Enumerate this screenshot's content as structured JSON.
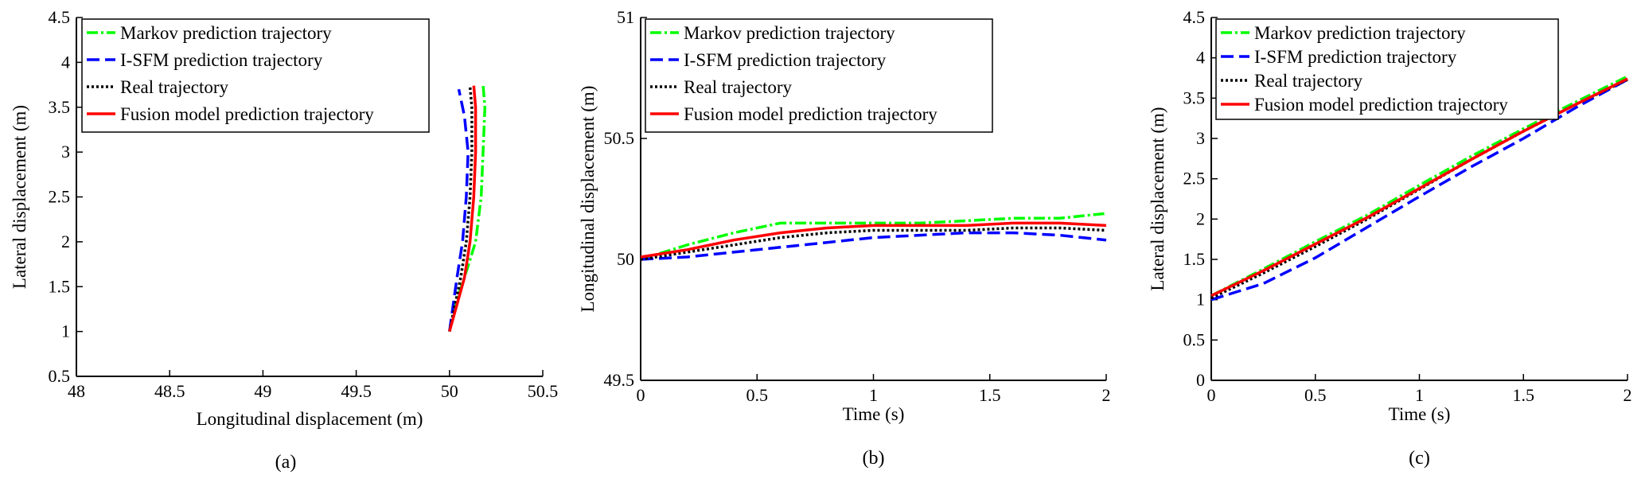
{
  "styles": {
    "markov": {
      "color": "#00ff00",
      "dash": "14 4 3 4",
      "width": 3.5
    },
    "isfm": {
      "color": "#0000ff",
      "dash": "16 7",
      "width": 3.5
    },
    "real": {
      "color": "#000000",
      "dash": "3 3",
      "width": 3.5
    },
    "fusion": {
      "color": "#ff0000",
      "dash": "",
      "width": 3.5
    }
  },
  "chart_data": [
    {
      "type": "line",
      "caption": "(a)",
      "xlabel": "Longitudinal displacement (m)",
      "ylabel": "Lateral displacement (m)",
      "xlim": [
        48,
        50.5
      ],
      "ylim": [
        0.5,
        4.5
      ],
      "xticks": [
        "48",
        "48.5",
        "49",
        "49.5",
        "50",
        "50.5"
      ],
      "xtick_values": [
        48,
        48.5,
        49,
        49.5,
        50,
        50.5
      ],
      "yticks": [
        "0.5",
        "1",
        "1.5",
        "2",
        "2.5",
        "3",
        "3.5",
        "4",
        "4.5"
      ],
      "ytick_values": [
        0.5,
        1,
        1.5,
        2,
        2.5,
        3,
        3.5,
        4,
        4.5
      ],
      "legend": {
        "position": "top-left",
        "entries": [
          {
            "key": "markov",
            "label": "Markov prediction trajectory"
          },
          {
            "key": "isfm",
            "label": "I-SFM prediction trajectory"
          },
          {
            "key": "real",
            "label": "Real trajectory"
          },
          {
            "key": "fusion",
            "label": "Fusion model prediction trajectory"
          }
        ]
      },
      "series": [
        {
          "key": "markov",
          "x": [
            50.0,
            50.03,
            50.08,
            50.14,
            50.17,
            50.18,
            50.19,
            50.18
          ],
          "y": [
            1.0,
            1.3,
            1.6,
            2.0,
            2.5,
            3.0,
            3.5,
            3.75
          ]
        },
        {
          "key": "isfm",
          "x": [
            50.0,
            50.02,
            50.04,
            50.07,
            50.09,
            50.1,
            50.08,
            50.05
          ],
          "y": [
            1.0,
            1.3,
            1.6,
            2.0,
            2.5,
            3.0,
            3.4,
            3.7
          ]
        },
        {
          "key": "real",
          "x": [
            50.0,
            50.03,
            50.06,
            50.09,
            50.11,
            50.12,
            50.12,
            50.11
          ],
          "y": [
            1.0,
            1.3,
            1.6,
            2.0,
            2.5,
            3.0,
            3.5,
            3.73
          ]
        },
        {
          "key": "fusion",
          "x": [
            50.0,
            50.04,
            50.08,
            50.11,
            50.13,
            50.14,
            50.14,
            50.13
          ],
          "y": [
            1.0,
            1.3,
            1.6,
            2.0,
            2.5,
            3.0,
            3.5,
            3.74
          ]
        }
      ]
    },
    {
      "type": "line",
      "caption": "(b)",
      "xlabel": "Time (s)",
      "ylabel": "Longitudinal displacement (m)",
      "xlim": [
        0,
        2
      ],
      "ylim": [
        49.5,
        51
      ],
      "xticks": [
        "0",
        "0.5",
        "1",
        "1.5",
        "2"
      ],
      "xtick_values": [
        0,
        0.5,
        1,
        1.5,
        2
      ],
      "yticks": [
        "49.5",
        "50",
        "50.5",
        "51"
      ],
      "ytick_values": [
        49.5,
        50,
        50.5,
        51
      ],
      "legend": {
        "position": "top-left",
        "entries": [
          {
            "key": "markov",
            "label": "Markov prediction trajectory"
          },
          {
            "key": "isfm",
            "label": "I-SFM prediction trajectory"
          },
          {
            "key": "real",
            "label": "Real trajectory"
          },
          {
            "key": "fusion",
            "label": "Fusion model prediction trajectory"
          }
        ]
      },
      "series": [
        {
          "key": "markov",
          "x": [
            0,
            0.2,
            0.4,
            0.6,
            0.8,
            1.0,
            1.2,
            1.4,
            1.6,
            1.8,
            2.0
          ],
          "y": [
            50.0,
            50.06,
            50.11,
            50.15,
            50.15,
            50.15,
            50.15,
            50.16,
            50.17,
            50.17,
            50.19
          ]
        },
        {
          "key": "isfm",
          "x": [
            0,
            0.2,
            0.4,
            0.6,
            0.8,
            1.0,
            1.2,
            1.4,
            1.6,
            1.8,
            2.0
          ],
          "y": [
            50.0,
            50.01,
            50.03,
            50.05,
            50.07,
            50.09,
            50.1,
            50.11,
            50.11,
            50.1,
            50.08
          ]
        },
        {
          "key": "real",
          "x": [
            0,
            0.2,
            0.4,
            0.6,
            0.8,
            1.0,
            1.2,
            1.4,
            1.6,
            1.8,
            2.0
          ],
          "y": [
            50.0,
            50.03,
            50.06,
            50.09,
            50.11,
            50.12,
            50.12,
            50.12,
            50.13,
            50.13,
            50.12
          ]
        },
        {
          "key": "fusion",
          "x": [
            0,
            0.2,
            0.4,
            0.6,
            0.8,
            1.0,
            1.2,
            1.4,
            1.6,
            1.8,
            2.0
          ],
          "y": [
            50.01,
            50.04,
            50.08,
            50.11,
            50.13,
            50.14,
            50.14,
            50.14,
            50.15,
            50.15,
            50.14
          ]
        }
      ]
    },
    {
      "type": "line",
      "caption": "(c)",
      "xlabel": "Time (s)",
      "ylabel": "Lateral displacement (m)",
      "xlim": [
        0,
        2
      ],
      "ylim": [
        0,
        4.5
      ],
      "xticks": [
        "0",
        "0.5",
        "1",
        "1.5",
        "2"
      ],
      "xtick_values": [
        0,
        0.5,
        1,
        1.5,
        2
      ],
      "yticks": [
        "0",
        "0.5",
        "1",
        "1.5",
        "2",
        "2.5",
        "3",
        "3.5",
        "4",
        "4.5"
      ],
      "ytick_values": [
        0,
        0.5,
        1,
        1.5,
        2,
        2.5,
        3,
        3.5,
        4,
        4.5
      ],
      "legend": {
        "position": "top-left",
        "entries": [
          {
            "key": "markov",
            "label": "Markov prediction trajectory"
          },
          {
            "key": "isfm",
            "label": "I-SFM prediction trajectory"
          },
          {
            "key": "real",
            "label": "Real trajectory"
          },
          {
            "key": "fusion",
            "label": "Fusion model prediction trajectory"
          }
        ]
      },
      "series": [
        {
          "key": "markov",
          "x": [
            0,
            0.25,
            0.5,
            0.75,
            1.0,
            1.25,
            1.5,
            1.75,
            2.0
          ],
          "y": [
            1.05,
            1.38,
            1.72,
            2.05,
            2.42,
            2.78,
            3.12,
            3.45,
            3.77
          ]
        },
        {
          "key": "isfm",
          "x": [
            0,
            0.25,
            0.5,
            0.75,
            1.0,
            1.25,
            1.5,
            1.75,
            2.0
          ],
          "y": [
            1.0,
            1.2,
            1.52,
            1.9,
            2.28,
            2.65,
            3.0,
            3.38,
            3.73
          ]
        },
        {
          "key": "real",
          "x": [
            0,
            0.25,
            0.5,
            0.75,
            1.0,
            1.25,
            1.5,
            1.75,
            2.0
          ],
          "y": [
            1.02,
            1.33,
            1.66,
            2.0,
            2.37,
            2.74,
            3.09,
            3.42,
            3.73
          ]
        },
        {
          "key": "fusion",
          "x": [
            0,
            0.25,
            0.5,
            0.75,
            1.0,
            1.25,
            1.5,
            1.75,
            2.0
          ],
          "y": [
            1.05,
            1.36,
            1.69,
            2.02,
            2.38,
            2.74,
            3.09,
            3.42,
            3.74
          ]
        }
      ]
    }
  ]
}
